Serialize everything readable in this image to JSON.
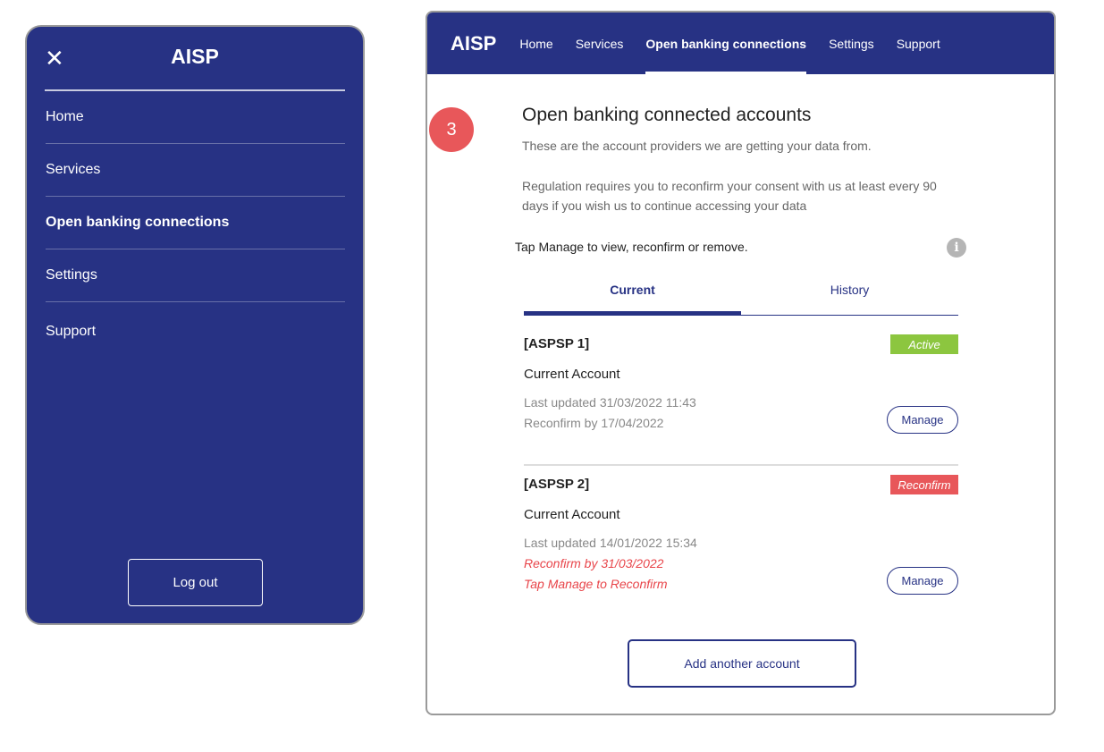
{
  "menu": {
    "close_icon": "close-icon",
    "title": "AISP",
    "items": [
      {
        "label": "Home"
      },
      {
        "label": "Services"
      },
      {
        "label": "Open banking connections"
      },
      {
        "label": "Settings"
      },
      {
        "label": "Support"
      }
    ],
    "logout": "Log out"
  },
  "nav": {
    "logo": "AISP",
    "links": [
      {
        "label": "Home"
      },
      {
        "label": "Services"
      },
      {
        "label": "Open banking connections"
      },
      {
        "label": "Settings"
      },
      {
        "label": "Support"
      }
    ]
  },
  "step": "3",
  "main": {
    "title": "Open banking connected accounts",
    "intro": "These are the account providers we are getting your data from.",
    "regulation": "Regulation requires you to reconfirm your consent with us at least every 90 days if you wish us to continue accessing your data",
    "tap_note": "Tap Manage to view, reconfirm or remove.",
    "info_icon": "i",
    "tabs": [
      {
        "label": "Current"
      },
      {
        "label": "History"
      }
    ],
    "accounts": [
      {
        "name": "[ASPSP 1]",
        "status": "Active",
        "status_color": "#8cc63f",
        "type": "Current Account",
        "last_updated": "Last updated 31/03/2022 11:43",
        "reconfirm": "Reconfirm by 17/04/2022",
        "manage": "Manage"
      },
      {
        "name": "[ASPSP 2]",
        "status": "Reconfirm",
        "status_color": "#e8575a",
        "type": "Current Account",
        "last_updated": "Last updated 14/01/2022 15:34",
        "reconfirm": "Reconfirm by 31/03/2022",
        "note": "Tap Manage to Reconfirm",
        "manage": "Manage"
      }
    ],
    "add_button": "Add another account"
  },
  "colors": {
    "brand": "#273284",
    "alert": "#e8454a",
    "active": "#8cc63f"
  }
}
